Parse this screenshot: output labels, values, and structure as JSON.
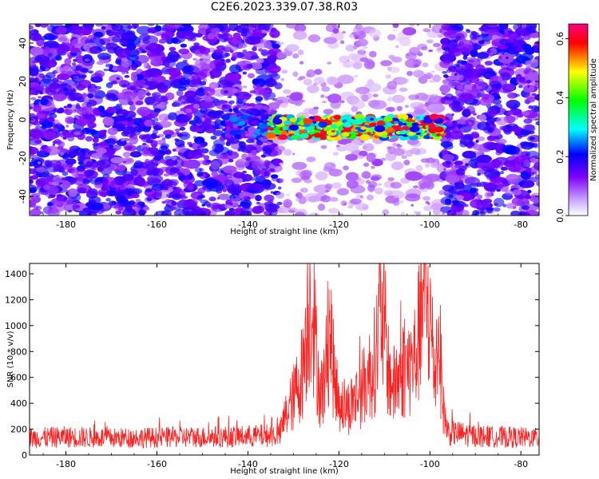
{
  "title": "C2E6.2023.339.07.38.R03",
  "chart_data": [
    {
      "type": "heatmap",
      "xlabel": "Height of straight line (km)",
      "ylabel": "Frequency (Hz)",
      "xlim": [
        -188,
        -76
      ],
      "ylim": [
        -50,
        50
      ],
      "xticks": [
        -180,
        -160,
        -140,
        -120,
        -100,
        -80
      ],
      "yticks": [
        -40,
        -20,
        0,
        20,
        40
      ],
      "colorbar": {
        "label": "Normalized spectral amplitude",
        "range": [
          0,
          0.65
        ],
        "ticks": [
          "0.0",
          "0.2",
          "0.4",
          "0.6"
        ],
        "colors": [
          "#ffffff",
          "#8000ff",
          "#0000ff",
          "#00ffff",
          "#00ff00",
          "#ffff00",
          "#ff0000",
          "#ff0080"
        ]
      },
      "regions": [
        {
          "x": [
            -188,
            -133
          ],
          "freq": [
            -50,
            50
          ],
          "level": 0.08
        },
        {
          "x": [
            -133,
            -97
          ],
          "freq": [
            -50,
            50
          ],
          "level": 0.03
        },
        {
          "x": [
            -97,
            -76
          ],
          "freq": [
            -50,
            50
          ],
          "level": 0.08
        }
      ],
      "band": {
        "x": [
          -145,
          -97
        ],
        "freq_center": -4,
        "freq_width": 8,
        "peak_level": 0.62
      },
      "grid": false
    },
    {
      "type": "line",
      "xlabel": "Height of straight line (km)",
      "ylabel": "SNR (10 * v/v)",
      "xlim": [
        -188,
        -76
      ],
      "ylim": [
        0,
        1480
      ],
      "xticks": [
        -180,
        -160,
        -140,
        -120,
        -100,
        -80
      ],
      "yticks": [
        0,
        200,
        400,
        600,
        800,
        1000,
        1200,
        1400
      ],
      "color": "#ff2020",
      "series": [
        {
          "x": [
            -188,
            -180,
            -170,
            -160,
            -150,
            -140,
            -133,
            -132,
            -130,
            -128,
            -127,
            -126,
            -125,
            -124,
            -123,
            -122,
            -121,
            -120,
            -118,
            -116,
            -114,
            -112,
            -111,
            -110,
            -109,
            -108,
            -106,
            -104,
            -103,
            -102,
            -101,
            -100,
            -99,
            -98,
            -97,
            -96,
            -90,
            -85,
            -80,
            -76
          ],
          "y": [
            150,
            160,
            150,
            155,
            160,
            165,
            180,
            320,
            500,
            750,
            1200,
            1440,
            900,
            500,
            700,
            1170,
            650,
            480,
            420,
            520,
            640,
            850,
            1190,
            1120,
            700,
            600,
            750,
            800,
            900,
            1200,
            1480,
            1200,
            750,
            1050,
            400,
            200,
            170,
            160,
            155,
            150
          ]
        }
      ],
      "grid": false
    }
  ]
}
